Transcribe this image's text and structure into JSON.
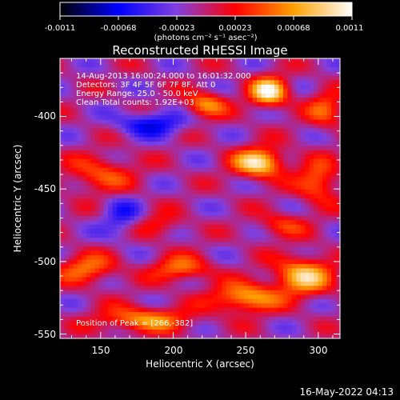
{
  "chart_data": {
    "type": "heatmap",
    "title": "Reconstructed RHESSI Image",
    "xlabel": "Heliocentric X (arcsec)",
    "ylabel": "Heliocentric Y (arcsec)",
    "xlim": [
      122,
      315
    ],
    "ylim": [
      -553,
      -360
    ],
    "xticks": [
      "150",
      "200",
      "250",
      "300"
    ],
    "yticks": [
      "-400",
      "-450",
      "-500",
      "-550"
    ],
    "xtick_values": [
      150,
      200,
      250,
      300
    ],
    "ytick_values": [
      -400,
      -450,
      -500,
      -550
    ],
    "colorbar": {
      "min": -0.0011,
      "max": 0.0011,
      "ticks": [
        "-0.0011",
        "-0.00068",
        "-0.00023",
        "0.00023",
        "0.00068",
        "0.0011"
      ],
      "units": "(photons cm⁻² s⁻¹ asec⁻²)",
      "colormap": [
        "#000000",
        "#0000ff",
        "#8040e0",
        "#ff0000",
        "#ffa000",
        "#ffffff"
      ]
    },
    "info_lines": [
      "14-Aug-2013 16:00:24.000 to 16:01:32.000",
      "Detectors: 3F 4F 5F 6F 7F 8F, Att 0",
      "Energy Range: 25.0 - 50.0 keV",
      "Clean    Total counts: 1.92E+03"
    ],
    "peak_label": "Position of Peak = [266,-382]",
    "peak_position": [
      266,
      -382
    ],
    "sources": [
      {
        "x": 266,
        "y": -383,
        "intensity": 0.0011,
        "sigma_x": 9,
        "sigma_y": 7
      },
      {
        "x": 259,
        "y": -432,
        "intensity": 0.00105,
        "sigma_x": 12,
        "sigma_y": 7
      },
      {
        "x": 222,
        "y": -392,
        "intensity": 0.0007,
        "sigma_x": 10,
        "sigma_y": 6
      },
      {
        "x": 290,
        "y": -510,
        "intensity": 0.0009,
        "sigma_x": 14,
        "sigma_y": 9
      },
      {
        "x": 250,
        "y": -525,
        "intensity": 0.0008,
        "sigma_x": 16,
        "sigma_y": 7
      },
      {
        "x": 180,
        "y": -540,
        "intensity": 0.0007,
        "sigma_x": 22,
        "sigma_y": 6
      },
      {
        "x": 140,
        "y": -505,
        "intensity": 0.0006,
        "sigma_x": 14,
        "sigma_y": 7
      },
      {
        "x": 150,
        "y": -440,
        "intensity": 0.0005,
        "sigma_x": 16,
        "sigma_y": 9
      },
      {
        "x": 205,
        "y": -505,
        "intensity": 0.0006,
        "sigma_x": 14,
        "sigma_y": 6
      },
      {
        "x": 300,
        "y": -445,
        "intensity": 0.0006,
        "sigma_x": 10,
        "sigma_y": 10
      },
      {
        "x": 305,
        "y": -395,
        "intensity": 0.0005,
        "sigma_x": 9,
        "sigma_y": 9
      },
      {
        "x": 190,
        "y": -475,
        "intensity": 0.00035,
        "sigma_x": 12,
        "sigma_y": 6
      },
      {
        "x": 275,
        "y": -475,
        "intensity": 0.0004,
        "sigma_x": 12,
        "sigma_y": 6
      },
      {
        "x": 185,
        "y": -405,
        "intensity": -0.0006,
        "sigma_x": 16,
        "sigma_y": 6
      },
      {
        "x": 165,
        "y": -470,
        "intensity": -0.0004,
        "sigma_x": 10,
        "sigma_y": 10
      }
    ]
  },
  "footer": {
    "timestamp": "16-May-2022 04:13"
  }
}
